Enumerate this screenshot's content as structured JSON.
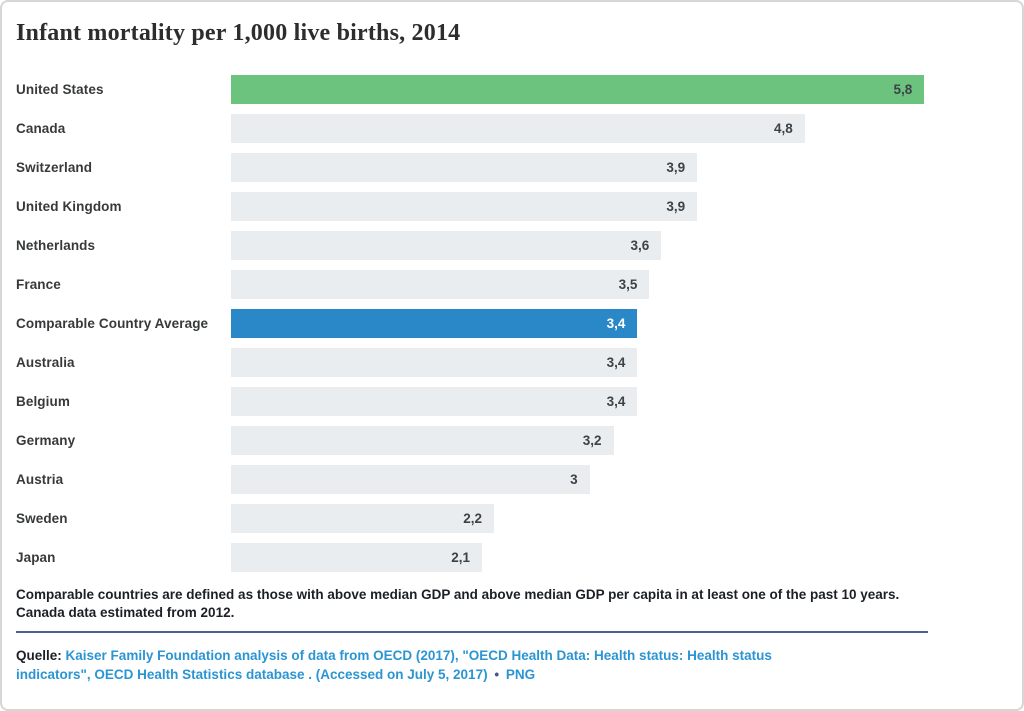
{
  "title": "Infant mortality per 1,000 live births, 2014",
  "chart_data": {
    "type": "bar",
    "orientation": "horizontal",
    "title": "Infant mortality per 1,000 live births, 2014",
    "xlabel": "",
    "ylabel": "",
    "xlim": [
      0,
      6.5
    ],
    "grid": false,
    "value_format": "comma-decimal",
    "categories": [
      "United States",
      "Canada",
      "Switzerland",
      "United Kingdom",
      "Netherlands",
      "France",
      "Comparable Country Average",
      "Australia",
      "Belgium",
      "Germany",
      "Austria",
      "Sweden",
      "Japan"
    ],
    "values": [
      5.8,
      4.8,
      3.9,
      3.9,
      3.6,
      3.5,
      3.4,
      3.4,
      3.4,
      3.2,
      3.0,
      2.2,
      2.1
    ],
    "rows": [
      {
        "label": "United States",
        "value": 5.8,
        "display": "5,8",
        "color": "us_green"
      },
      {
        "label": "Canada",
        "value": 4.8,
        "display": "4,8",
        "color": "default"
      },
      {
        "label": "Switzerland",
        "value": 3.9,
        "display": "3,9",
        "color": "default"
      },
      {
        "label": "United Kingdom",
        "value": 3.9,
        "display": "3,9",
        "color": "default"
      },
      {
        "label": "Netherlands",
        "value": 3.6,
        "display": "3,6",
        "color": "default"
      },
      {
        "label": "France",
        "value": 3.5,
        "display": "3,5",
        "color": "default"
      },
      {
        "label": "Comparable Country Average",
        "value": 3.4,
        "display": "3,4",
        "color": "avg_blue"
      },
      {
        "label": "Australia",
        "value": 3.4,
        "display": "3,4",
        "color": "default"
      },
      {
        "label": "Belgium",
        "value": 3.4,
        "display": "3,4",
        "color": "default"
      },
      {
        "label": "Germany",
        "value": 3.2,
        "display": "3,2",
        "color": "default"
      },
      {
        "label": "Austria",
        "value": 3.0,
        "display": "3",
        "color": "default"
      },
      {
        "label": "Sweden",
        "value": 2.2,
        "display": "2,2",
        "color": "default"
      },
      {
        "label": "Japan",
        "value": 2.1,
        "display": "2,1",
        "color": "default"
      }
    ],
    "colors": {
      "default": "#e9edf0",
      "us_green": "#6cc37e",
      "avg_blue": "#2a87c8"
    }
  },
  "footnote": {
    "line1": "Comparable countries are defined as those with above median GDP and above median GDP per capita in at least one of the past 10 years.",
    "line2": "Canada data estimated from 2012."
  },
  "source": {
    "prefix": "Quelle:",
    "link_line1": "Kaiser Family Foundation analysis of data from OECD (2017), \"OECD Health Data: Health status: Health status",
    "link_line2": "indicators\", OECD Health Statistics database . (Accessed on July 5, 2017)",
    "separator": "•",
    "png_label": "PNG"
  }
}
